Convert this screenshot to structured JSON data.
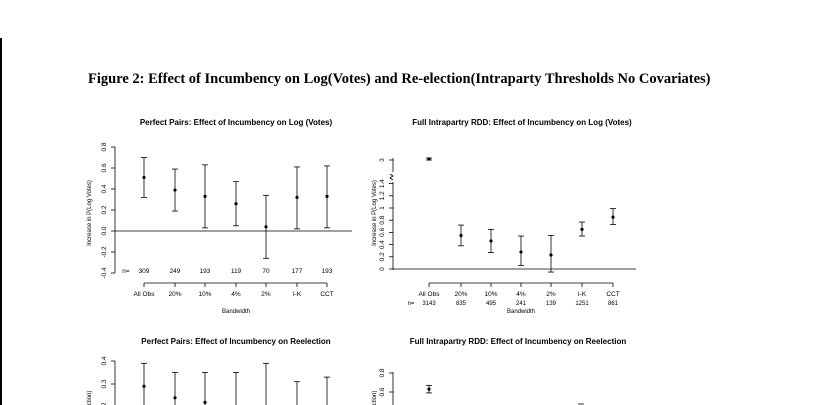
{
  "figure_title": "Figure 2: Effect of Incumbency on Log(Votes) and Re-election(Intraparty Thresholds No Covariates)",
  "chart_data": [
    {
      "type": "scatter",
      "title": "Perfect Pairs: Effect of Incumbency on Log (Votes)",
      "ylabel": "Increase in P(Log Votes)",
      "xlabel": "Bandwidth",
      "categories": [
        "All Obs",
        "20%",
        "10%",
        "4%",
        "2%",
        "I-K",
        "CCT"
      ],
      "n_prefix": "n=",
      "n_values": [
        "309",
        "249",
        "193",
        "119",
        "70",
        "177",
        "193"
      ],
      "ylim": [
        -0.4,
        0.8
      ],
      "yticks": [
        "-0.4",
        "-0.2",
        "0.0",
        "0.2",
        "0.4",
        "0.6",
        "0.8"
      ],
      "zero_line": true,
      "estimates": [
        0.51,
        0.39,
        0.33,
        0.26,
        0.04,
        0.32,
        0.33
      ],
      "ci_lower": [
        0.32,
        0.19,
        0.03,
        0.05,
        -0.26,
        0.02,
        0.03
      ],
      "ci_upper": [
        0.7,
        0.59,
        0.63,
        0.47,
        0.34,
        0.61,
        0.62
      ]
    },
    {
      "type": "scatter",
      "title": "Full Intrapartry RDD: Effect of Incumbency on Log (Votes)",
      "ylabel": "Increase in P(Log Votes)",
      "xlabel": "Bandwidth",
      "categories": [
        "All Obs",
        "20%",
        "10%",
        "4%",
        "2%",
        "I-K",
        "CCT"
      ],
      "n_prefix": "n=",
      "n_values": [
        "3143",
        "835",
        "495",
        "241",
        "139",
        "1251",
        "861"
      ],
      "ylim": [
        0,
        3
      ],
      "yticks": [
        "0",
        "0.2",
        "0.4",
        "0.6",
        "0.8",
        "1",
        "1.2",
        "1.4",
        "3"
      ],
      "axis_break": true,
      "zero_line": true,
      "estimates": [
        2.95,
        0.55,
        0.46,
        0.28,
        0.23,
        0.65,
        0.85
      ],
      "ci_lower": [
        2.9,
        0.38,
        0.27,
        0.06,
        -0.05,
        0.54,
        0.73
      ],
      "ci_upper": [
        3.0,
        0.72,
        0.65,
        0.54,
        0.55,
        0.77,
        0.99
      ]
    },
    {
      "type": "scatter",
      "title": "Perfect Pairs: Effect of Incumbency on Reelection",
      "ylabel": "ction)",
      "yticks": [
        "0.2",
        "0.3",
        "0.4"
      ],
      "estimates": [
        0.29,
        0.24,
        0.22
      ],
      "ci_upper": [
        0.39,
        0.35,
        0.35,
        0.35,
        0.39,
        0.31,
        0.33
      ]
    },
    {
      "type": "scatter",
      "title": "Full Intrapartry RDD: Effect of Incumbency on Reelection",
      "ylabel": "ction)",
      "yticks": [
        "0.6",
        "0.8"
      ],
      "estimates": [
        0.63
      ],
      "ci_lower": [
        0.59
      ],
      "ci_upper": [
        0.67
      ]
    }
  ]
}
